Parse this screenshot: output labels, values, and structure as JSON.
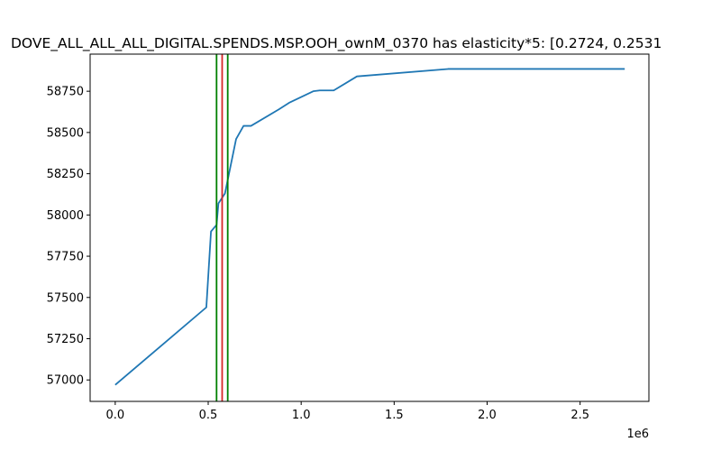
{
  "chart_data": {
    "type": "line",
    "title": "DOVE_ALL_ALL_ALL_DIGITAL.SPENDS.MSP.OOH_ownM_0370 has elasticity*5:   [0.2724, 0.2531",
    "xlabel": "",
    "ylabel": "",
    "x_offset_label": "1e6",
    "xlim": [
      -135000,
      2870000
    ],
    "ylim": [
      56870,
      58975
    ],
    "x_ticks": [
      {
        "value": 0,
        "label": "0.0"
      },
      {
        "value": 500000,
        "label": "0.5"
      },
      {
        "value": 1000000,
        "label": "1.0"
      },
      {
        "value": 1500000,
        "label": "1.5"
      },
      {
        "value": 2000000,
        "label": "2.0"
      },
      {
        "value": 2500000,
        "label": "2.5"
      }
    ],
    "y_ticks": [
      {
        "value": 57000,
        "label": "57000"
      },
      {
        "value": 57250,
        "label": "57250"
      },
      {
        "value": 57500,
        "label": "57500"
      },
      {
        "value": 57750,
        "label": "57750"
      },
      {
        "value": 58000,
        "label": "58000"
      },
      {
        "value": 58250,
        "label": "58250"
      },
      {
        "value": 58500,
        "label": "58500"
      },
      {
        "value": 58750,
        "label": "58750"
      }
    ],
    "series": [
      {
        "color": "#1f77b4",
        "x": [
          0,
          490000,
          515000,
          545000,
          555000,
          590000,
          650000,
          690000,
          730000,
          880000,
          935000,
          1065000,
          1100000,
          1175000,
          1300000,
          1790000,
          2740000
        ],
        "y": [
          56970,
          57440,
          57900,
          57940,
          58070,
          58130,
          58460,
          58540,
          58540,
          58640,
          58680,
          58750,
          58755,
          58755,
          58840,
          58885,
          58885
        ]
      }
    ],
    "vertical_lines": [
      {
        "x": 545000,
        "color": "#008000"
      },
      {
        "x": 575000,
        "color": "#d62728"
      },
      {
        "x": 605000,
        "color": "#008000"
      }
    ],
    "grid": false,
    "legend": "none"
  }
}
